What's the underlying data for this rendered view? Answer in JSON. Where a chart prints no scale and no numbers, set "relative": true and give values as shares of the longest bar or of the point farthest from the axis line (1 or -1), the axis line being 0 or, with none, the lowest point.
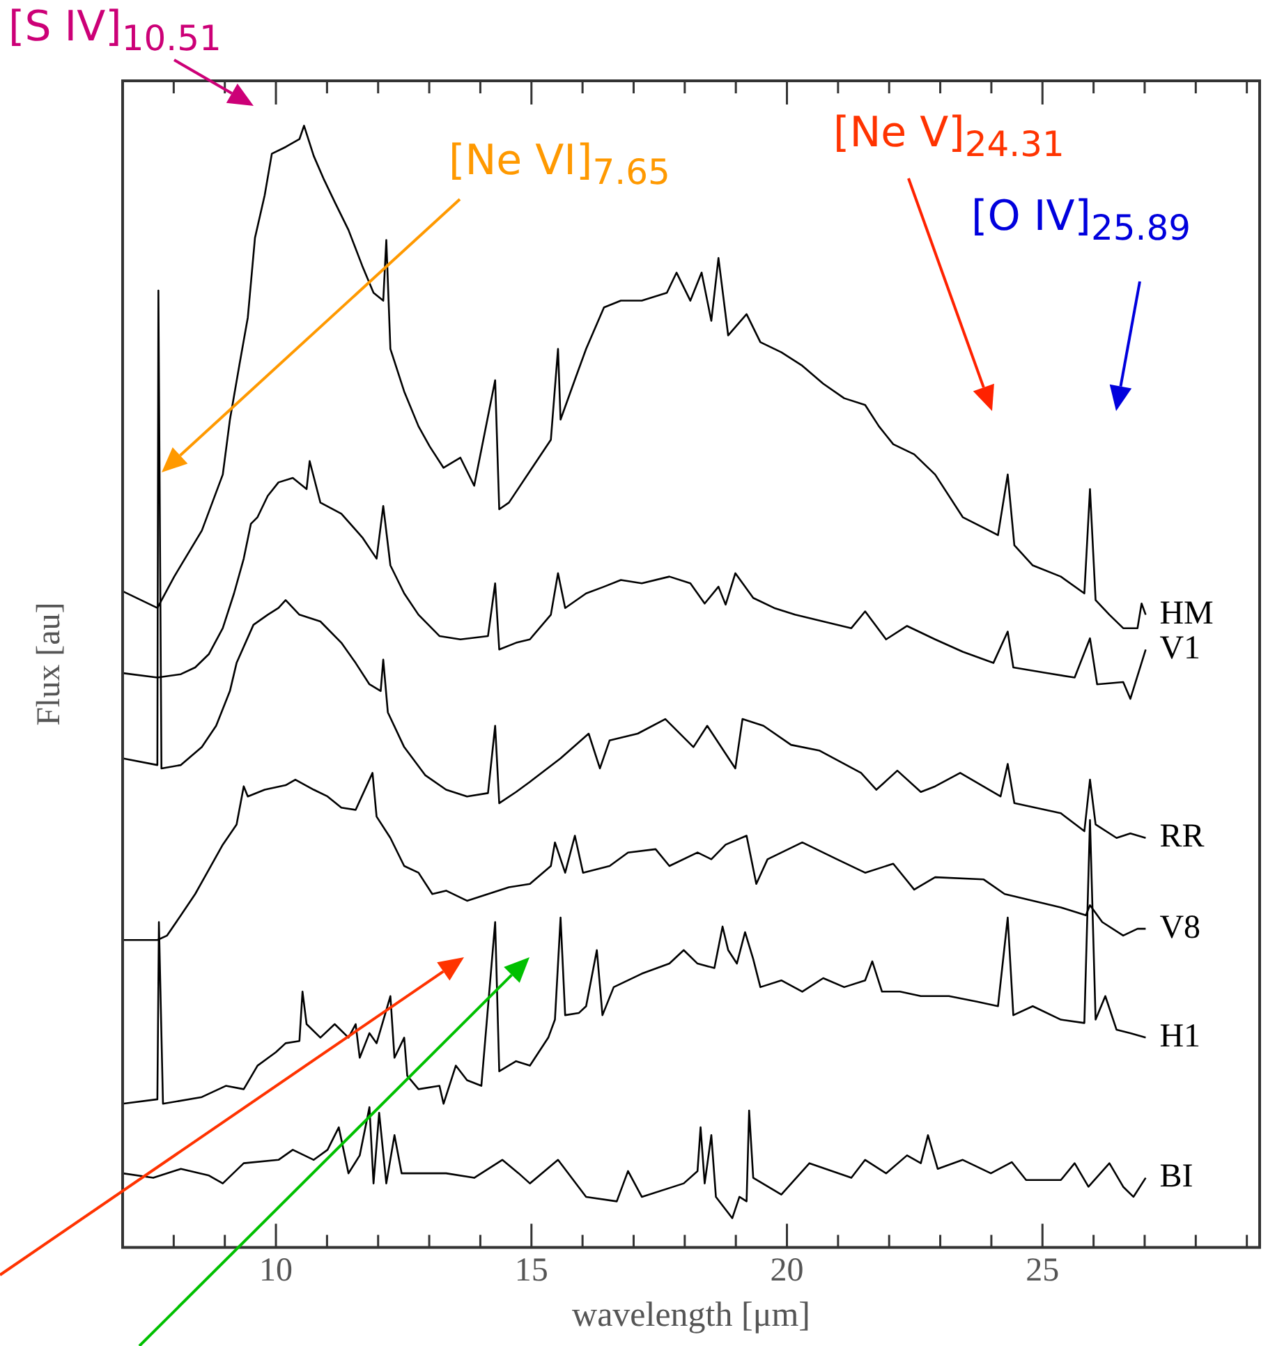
{
  "chart_data": {
    "type": "line",
    "relative": true,
    "xlabel": "wavelength [μm]",
    "ylabel": "Flux [au]",
    "xlim": [
      7,
      29.25
    ],
    "xticks": [
      {
        "value": 8,
        "label": null
      },
      {
        "value": 9,
        "label": null
      },
      10,
      {
        "value": 11,
        "label": null
      },
      {
        "value": 12,
        "label": null
      },
      {
        "value": 13,
        "label": null
      },
      {
        "value": 14,
        "label": null
      },
      15,
      {
        "value": 16,
        "label": null
      },
      {
        "value": 17,
        "label": null
      },
      {
        "value": 18,
        "label": null
      },
      {
        "value": 19,
        "label": null
      },
      20,
      {
        "value": 21,
        "label": null
      },
      {
        "value": 22,
        "label": null
      },
      {
        "value": 23,
        "label": null
      },
      {
        "value": 24,
        "label": null
      },
      25,
      {
        "value": 26,
        "label": null
      },
      {
        "value": 27,
        "label": null
      },
      {
        "value": 28,
        "label": null
      },
      {
        "value": 29,
        "label": null
      }
    ],
    "annotations": [
      "[S IV]$_{10.51}$",
      "[Ne VI]$_{7.65}$",
      "[Ne V]$_{24.31}$",
      "[O IV]$_{25.89}$"
    ],
    "series": [
      {
        "name": "HM",
        "color": "#000000",
        "x": [
          7.0,
          7.68,
          8.01,
          8.55,
          8.96,
          9.1,
          9.29,
          9.45,
          9.59,
          9.78,
          9.92,
          10.19,
          10.46,
          10.55,
          10.74,
          10.93,
          11.15,
          11.42,
          11.69,
          11.91,
          12.1,
          12.16,
          12.24,
          12.51,
          12.79,
          13.01,
          13.28,
          13.61,
          13.88,
          14.29,
          14.37,
          14.56,
          14.97,
          15.38,
          15.52,
          15.57,
          15.87,
          16.07,
          16.42,
          16.75,
          17.16,
          17.65,
          17.84,
          18.11,
          18.33,
          18.52,
          18.66,
          18.85,
          19.21,
          19.48,
          19.89,
          20.3,
          20.71,
          21.12,
          21.53,
          21.8,
          22.08,
          22.49,
          22.9,
          23.44,
          24.13,
          24.32,
          24.45,
          24.81,
          25.36,
          25.82,
          25.93,
          26.04,
          26.31,
          26.58,
          26.86,
          26.94,
          27.02
        ],
        "values": [
          0.585,
          0.57,
          0.598,
          0.639,
          0.689,
          0.738,
          0.788,
          0.829,
          0.9,
          0.938,
          0.975,
          0.981,
          0.988,
          1.0,
          0.973,
          0.953,
          0.932,
          0.907,
          0.875,
          0.851,
          0.844,
          0.898,
          0.801,
          0.763,
          0.732,
          0.714,
          0.695,
          0.704,
          0.679,
          0.773,
          0.658,
          0.664,
          0.692,
          0.72,
          0.801,
          0.738,
          0.776,
          0.801,
          0.838,
          0.844,
          0.844,
          0.851,
          0.869,
          0.844,
          0.869,
          0.826,
          0.882,
          0.813,
          0.832,
          0.807,
          0.798,
          0.786,
          0.77,
          0.757,
          0.751,
          0.732,
          0.716,
          0.707,
          0.689,
          0.651,
          0.635,
          0.689,
          0.626,
          0.608,
          0.598,
          0.583,
          0.676,
          0.577,
          0.564,
          0.552,
          0.552,
          0.574,
          0.564
        ]
      },
      {
        "name": "V1",
        "color": "#000000",
        "x": [
          7.0,
          7.68,
          8.14,
          8.42,
          8.69,
          8.96,
          9.18,
          9.37,
          9.51,
          9.64,
          9.84,
          10.05,
          10.33,
          10.6,
          10.66,
          10.87,
          11.28,
          11.69,
          11.97,
          12.1,
          12.24,
          12.51,
          12.79,
          13.2,
          13.61,
          14.15,
          14.29,
          14.37,
          14.7,
          14.97,
          15.38,
          15.52,
          15.66,
          16.07,
          16.42,
          16.75,
          17.16,
          17.7,
          18.11,
          18.39,
          18.66,
          18.8,
          18.99,
          19.34,
          19.75,
          20.16,
          20.71,
          21.26,
          21.53,
          21.94,
          22.35,
          22.9,
          23.44,
          24.04,
          24.32,
          24.43,
          25.08,
          25.63,
          25.93,
          26.07,
          26.58,
          26.72,
          27.02
        ],
        "values": [
          0.512,
          0.508,
          0.511,
          0.517,
          0.529,
          0.552,
          0.583,
          0.614,
          0.645,
          0.651,
          0.67,
          0.682,
          0.686,
          0.676,
          0.701,
          0.664,
          0.654,
          0.633,
          0.614,
          0.661,
          0.608,
          0.583,
          0.564,
          0.545,
          0.542,
          0.545,
          0.592,
          0.533,
          0.539,
          0.542,
          0.564,
          0.601,
          0.57,
          0.583,
          0.589,
          0.595,
          0.592,
          0.598,
          0.592,
          0.574,
          0.589,
          0.573,
          0.601,
          0.579,
          0.57,
          0.564,
          0.558,
          0.552,
          0.567,
          0.542,
          0.554,
          0.542,
          0.531,
          0.521,
          0.549,
          0.517,
          0.512,
          0.508,
          0.543,
          0.502,
          0.504,
          0.489,
          0.533
        ]
      },
      {
        "name": "RR",
        "color": "#000000",
        "x": [
          7.0,
          7.68,
          7.7,
          7.76,
          8.14,
          8.55,
          8.83,
          9.1,
          9.23,
          9.56,
          9.84,
          10.05,
          10.19,
          10.46,
          10.87,
          11.28,
          11.56,
          11.83,
          12.05,
          12.1,
          12.19,
          12.51,
          12.92,
          13.33,
          13.74,
          14.15,
          14.29,
          14.37,
          14.7,
          14.97,
          15.57,
          16.12,
          16.34,
          16.53,
          17.08,
          17.62,
          18.17,
          18.44,
          18.99,
          19.13,
          19.54,
          20.08,
          20.63,
          21.45,
          21.75,
          22.16,
          22.62,
          22.9,
          23.39,
          24.18,
          24.32,
          24.45,
          25.36,
          25.82,
          25.93,
          26.04,
          26.45,
          26.72,
          27.02
        ],
        "values": [
          0.436,
          0.43,
          0.853,
          0.427,
          0.43,
          0.446,
          0.465,
          0.496,
          0.521,
          0.555,
          0.564,
          0.57,
          0.577,
          0.564,
          0.558,
          0.539,
          0.521,
          0.502,
          0.496,
          0.524,
          0.477,
          0.446,
          0.421,
          0.408,
          0.402,
          0.405,
          0.465,
          0.396,
          0.406,
          0.415,
          0.436,
          0.458,
          0.427,
          0.452,
          0.458,
          0.471,
          0.446,
          0.465,
          0.427,
          0.471,
          0.465,
          0.448,
          0.443,
          0.423,
          0.408,
          0.425,
          0.406,
          0.411,
          0.423,
          0.402,
          0.431,
          0.396,
          0.387,
          0.371,
          0.417,
          0.377,
          0.365,
          0.369,
          0.365
        ]
      },
      {
        "name": "V8",
        "color": "#000000",
        "x": [
          7.0,
          7.68,
          7.87,
          8.14,
          8.42,
          8.69,
          8.96,
          9.23,
          9.37,
          9.45,
          9.78,
          10.19,
          10.38,
          10.74,
          11.01,
          11.28,
          11.56,
          11.89,
          11.97,
          12.24,
          12.51,
          12.79,
          13.06,
          13.33,
          13.74,
          14.15,
          14.56,
          14.97,
          15.38,
          15.46,
          15.66,
          15.85,
          16.01,
          16.53,
          16.89,
          17.43,
          17.7,
          18.25,
          18.52,
          18.8,
          19.21,
          19.4,
          19.62,
          20.3,
          20.98,
          21.53,
          22.08,
          22.49,
          22.9,
          23.85,
          24.26,
          25.36,
          25.85,
          25.93,
          26.17,
          26.58,
          26.86,
          27.02
        ],
        "values": [
          0.274,
          0.274,
          0.278,
          0.296,
          0.315,
          0.337,
          0.359,
          0.377,
          0.411,
          0.402,
          0.408,
          0.412,
          0.417,
          0.408,
          0.402,
          0.392,
          0.39,
          0.423,
          0.384,
          0.365,
          0.34,
          0.334,
          0.315,
          0.318,
          0.309,
          0.315,
          0.321,
          0.324,
          0.34,
          0.361,
          0.334,
          0.367,
          0.334,
          0.34,
          0.352,
          0.355,
          0.34,
          0.352,
          0.346,
          0.359,
          0.367,
          0.324,
          0.346,
          0.361,
          0.346,
          0.334,
          0.342,
          0.319,
          0.33,
          0.328,
          0.315,
          0.303,
          0.296,
          0.305,
          0.29,
          0.278,
          0.284,
          0.284
        ]
      },
      {
        "name": "H1",
        "color": "#000000",
        "x": [
          7.0,
          7.68,
          7.71,
          7.79,
          8.55,
          9.02,
          9.37,
          9.64,
          10.0,
          10.19,
          10.46,
          10.52,
          10.6,
          10.87,
          11.15,
          11.42,
          11.56,
          11.64,
          11.83,
          11.97,
          12.24,
          12.32,
          12.51,
          12.57,
          12.79,
          13.2,
          13.28,
          13.52,
          13.74,
          14.02,
          14.29,
          14.37,
          14.7,
          14.97,
          15.33,
          15.46,
          15.57,
          15.66,
          15.93,
          16.07,
          16.28,
          16.39,
          16.61,
          17.16,
          17.7,
          17.98,
          18.25,
          18.58,
          18.74,
          18.85,
          19.02,
          19.18,
          19.34,
          19.48,
          19.89,
          20.3,
          20.71,
          21.12,
          21.53,
          21.67,
          21.86,
          22.21,
          22.62,
          23.17,
          23.72,
          24.13,
          24.32,
          24.43,
          24.81,
          25.36,
          25.82,
          25.93,
          26.04,
          26.23,
          26.45,
          26.72,
          27.02
        ],
        "values": [
          0.128,
          0.132,
          0.29,
          0.128,
          0.134,
          0.144,
          0.141,
          0.162,
          0.174,
          0.182,
          0.184,
          0.228,
          0.199,
          0.187,
          0.199,
          0.187,
          0.199,
          0.169,
          0.191,
          0.182,
          0.224,
          0.169,
          0.187,
          0.153,
          0.141,
          0.144,
          0.128,
          0.162,
          0.149,
          0.144,
          0.29,
          0.157,
          0.166,
          0.162,
          0.187,
          0.203,
          0.294,
          0.207,
          0.209,
          0.215,
          0.265,
          0.207,
          0.232,
          0.244,
          0.253,
          0.265,
          0.253,
          0.249,
          0.286,
          0.265,
          0.253,
          0.281,
          0.257,
          0.232,
          0.238,
          0.228,
          0.24,
          0.232,
          0.238,
          0.255,
          0.228,
          0.228,
          0.224,
          0.224,
          0.219,
          0.215,
          0.294,
          0.207,
          0.215,
          0.203,
          0.2,
          0.381,
          0.203,
          0.224,
          0.194,
          0.191,
          0.187
        ]
      },
      {
        "name": "BI",
        "color": "#000000",
        "x": [
          7.0,
          7.6,
          8.14,
          8.69,
          8.96,
          9.37,
          10.05,
          10.33,
          10.74,
          11.01,
          11.23,
          11.42,
          11.64,
          11.83,
          11.91,
          12.02,
          12.16,
          12.32,
          12.46,
          13.33,
          13.88,
          14.43,
          14.75,
          14.97,
          15.52,
          16.07,
          16.67,
          16.89,
          17.16,
          17.98,
          18.25,
          18.31,
          18.39,
          18.52,
          18.61,
          18.93,
          19.07,
          19.21,
          19.26,
          19.34,
          19.89,
          20.44,
          21.26,
          21.53,
          21.94,
          22.35,
          22.62,
          22.76,
          22.95,
          23.44,
          23.99,
          24.4,
          24.68,
          25.36,
          25.63,
          25.9,
          26.31,
          26.58,
          26.78,
          27.02
        ],
        "values": [
          0.066,
          0.062,
          0.07,
          0.064,
          0.057,
          0.075,
          0.078,
          0.087,
          0.078,
          0.087,
          0.107,
          0.066,
          0.082,
          0.125,
          0.057,
          0.12,
          0.057,
          0.1,
          0.066,
          0.066,
          0.062,
          0.078,
          0.066,
          0.057,
          0.078,
          0.045,
          0.041,
          0.068,
          0.045,
          0.057,
          0.068,
          0.107,
          0.057,
          0.1,
          0.045,
          0.026,
          0.045,
          0.041,
          0.122,
          0.062,
          0.047,
          0.075,
          0.062,
          0.078,
          0.066,
          0.082,
          0.075,
          0.1,
          0.07,
          0.078,
          0.066,
          0.076,
          0.06,
          0.06,
          0.075,
          0.054,
          0.075,
          0.054,
          0.045,
          0.062
        ]
      }
    ]
  }
}
